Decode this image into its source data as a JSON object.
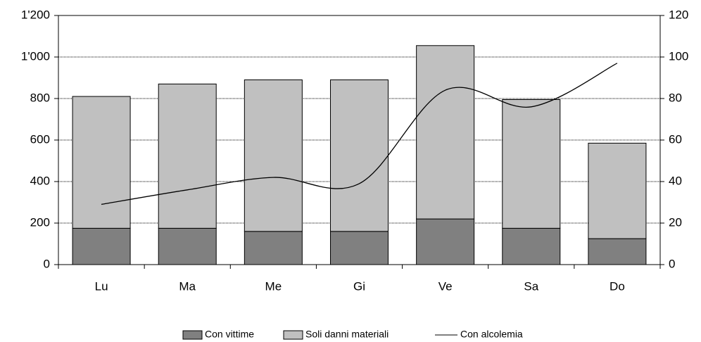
{
  "chart_data": {
    "type": "bar",
    "categories": [
      "Lu",
      "Ma",
      "Me",
      "Gi",
      "Ve",
      "Sa",
      "Do"
    ],
    "series": [
      {
        "name": "Con vittime",
        "color": "#808080",
        "values": [
          175,
          175,
          160,
          160,
          220,
          175,
          125
        ]
      },
      {
        "name": "Soli danni materiali",
        "color": "#c0c0c0",
        "values": [
          635,
          695,
          730,
          730,
          835,
          620,
          460
        ]
      },
      {
        "name": "Con alcolemia",
        "color": "#000000",
        "axis": "y2",
        "type": "line",
        "values": [
          29,
          36,
          42,
          39,
          84,
          76,
          97
        ]
      }
    ],
    "stacked": true,
    "ylim": [
      0,
      1200
    ],
    "yticks": [
      0,
      200,
      400,
      600,
      800,
      {
        "value": 1000,
        "label": "1'000"
      },
      {
        "value": 1200,
        "label": "1'200"
      }
    ],
    "y2lim": [
      0,
      120
    ],
    "y2ticks": [
      0,
      20,
      40,
      60,
      80,
      100,
      120
    ],
    "grid": true,
    "legend": "bottom"
  }
}
